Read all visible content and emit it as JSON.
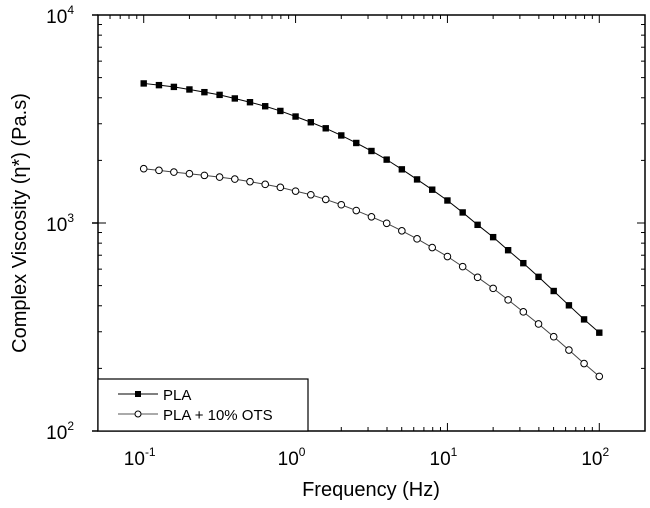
{
  "chart_data": {
    "type": "line",
    "title": "",
    "xlabel": "Frequency (Hz)",
    "ylabel": "Complex Viscosity (η*) (Pa.s)",
    "xscale": "log",
    "yscale": "log",
    "xlim": [
      0.05,
      200
    ],
    "ylim": [
      100,
      10000
    ],
    "grid": false,
    "legend_placement": "bottom-left",
    "x_ticks": [
      {
        "value": 0.1,
        "base": "10",
        "exp": "-1"
      },
      {
        "value": 1,
        "base": "10",
        "exp": "0"
      },
      {
        "value": 10,
        "base": "10",
        "exp": "1"
      },
      {
        "value": 100,
        "base": "10",
        "exp": "2"
      }
    ],
    "y_ticks": [
      {
        "value": 100,
        "base": "10",
        "exp": "2"
      },
      {
        "value": 1000,
        "base": "10",
        "exp": "3"
      },
      {
        "value": 10000,
        "base": "10",
        "exp": "4"
      }
    ],
    "x": [
      0.1,
      0.126,
      0.158,
      0.2,
      0.251,
      0.316,
      0.398,
      0.501,
      0.631,
      0.794,
      1,
      1.26,
      1.58,
      2,
      2.51,
      3.16,
      3.98,
      5.01,
      6.31,
      7.94,
      10,
      12.6,
      15.8,
      20,
      25.1,
      31.6,
      39.8,
      50.1,
      63.1,
      79.4,
      100
    ],
    "series": [
      {
        "name": "PLA",
        "marker": "filled-square",
        "color": "#000000",
        "values": [
          4688,
          4600,
          4512,
          4385,
          4256,
          4130,
          3970,
          3808,
          3642,
          3457,
          3250,
          3050,
          2853,
          2636,
          2425,
          2219,
          2017,
          1811,
          1620,
          1446,
          1283,
          1124,
          980,
          855,
          740,
          641,
          551,
          471,
          402,
          344,
          297
        ]
      },
      {
        "name": "PLA + 10% OTS",
        "marker": "open-circle",
        "color": "#000000",
        "values": [
          1824,
          1791,
          1757,
          1726,
          1694,
          1662,
          1626,
          1580,
          1534,
          1484,
          1423,
          1367,
          1298,
          1224,
          1148,
          1071,
          997,
          917,
          839,
          762,
          690,
          617,
          548,
          485,
          427,
          374,
          327,
          284,
          245,
          211,
          183
        ]
      }
    ]
  }
}
